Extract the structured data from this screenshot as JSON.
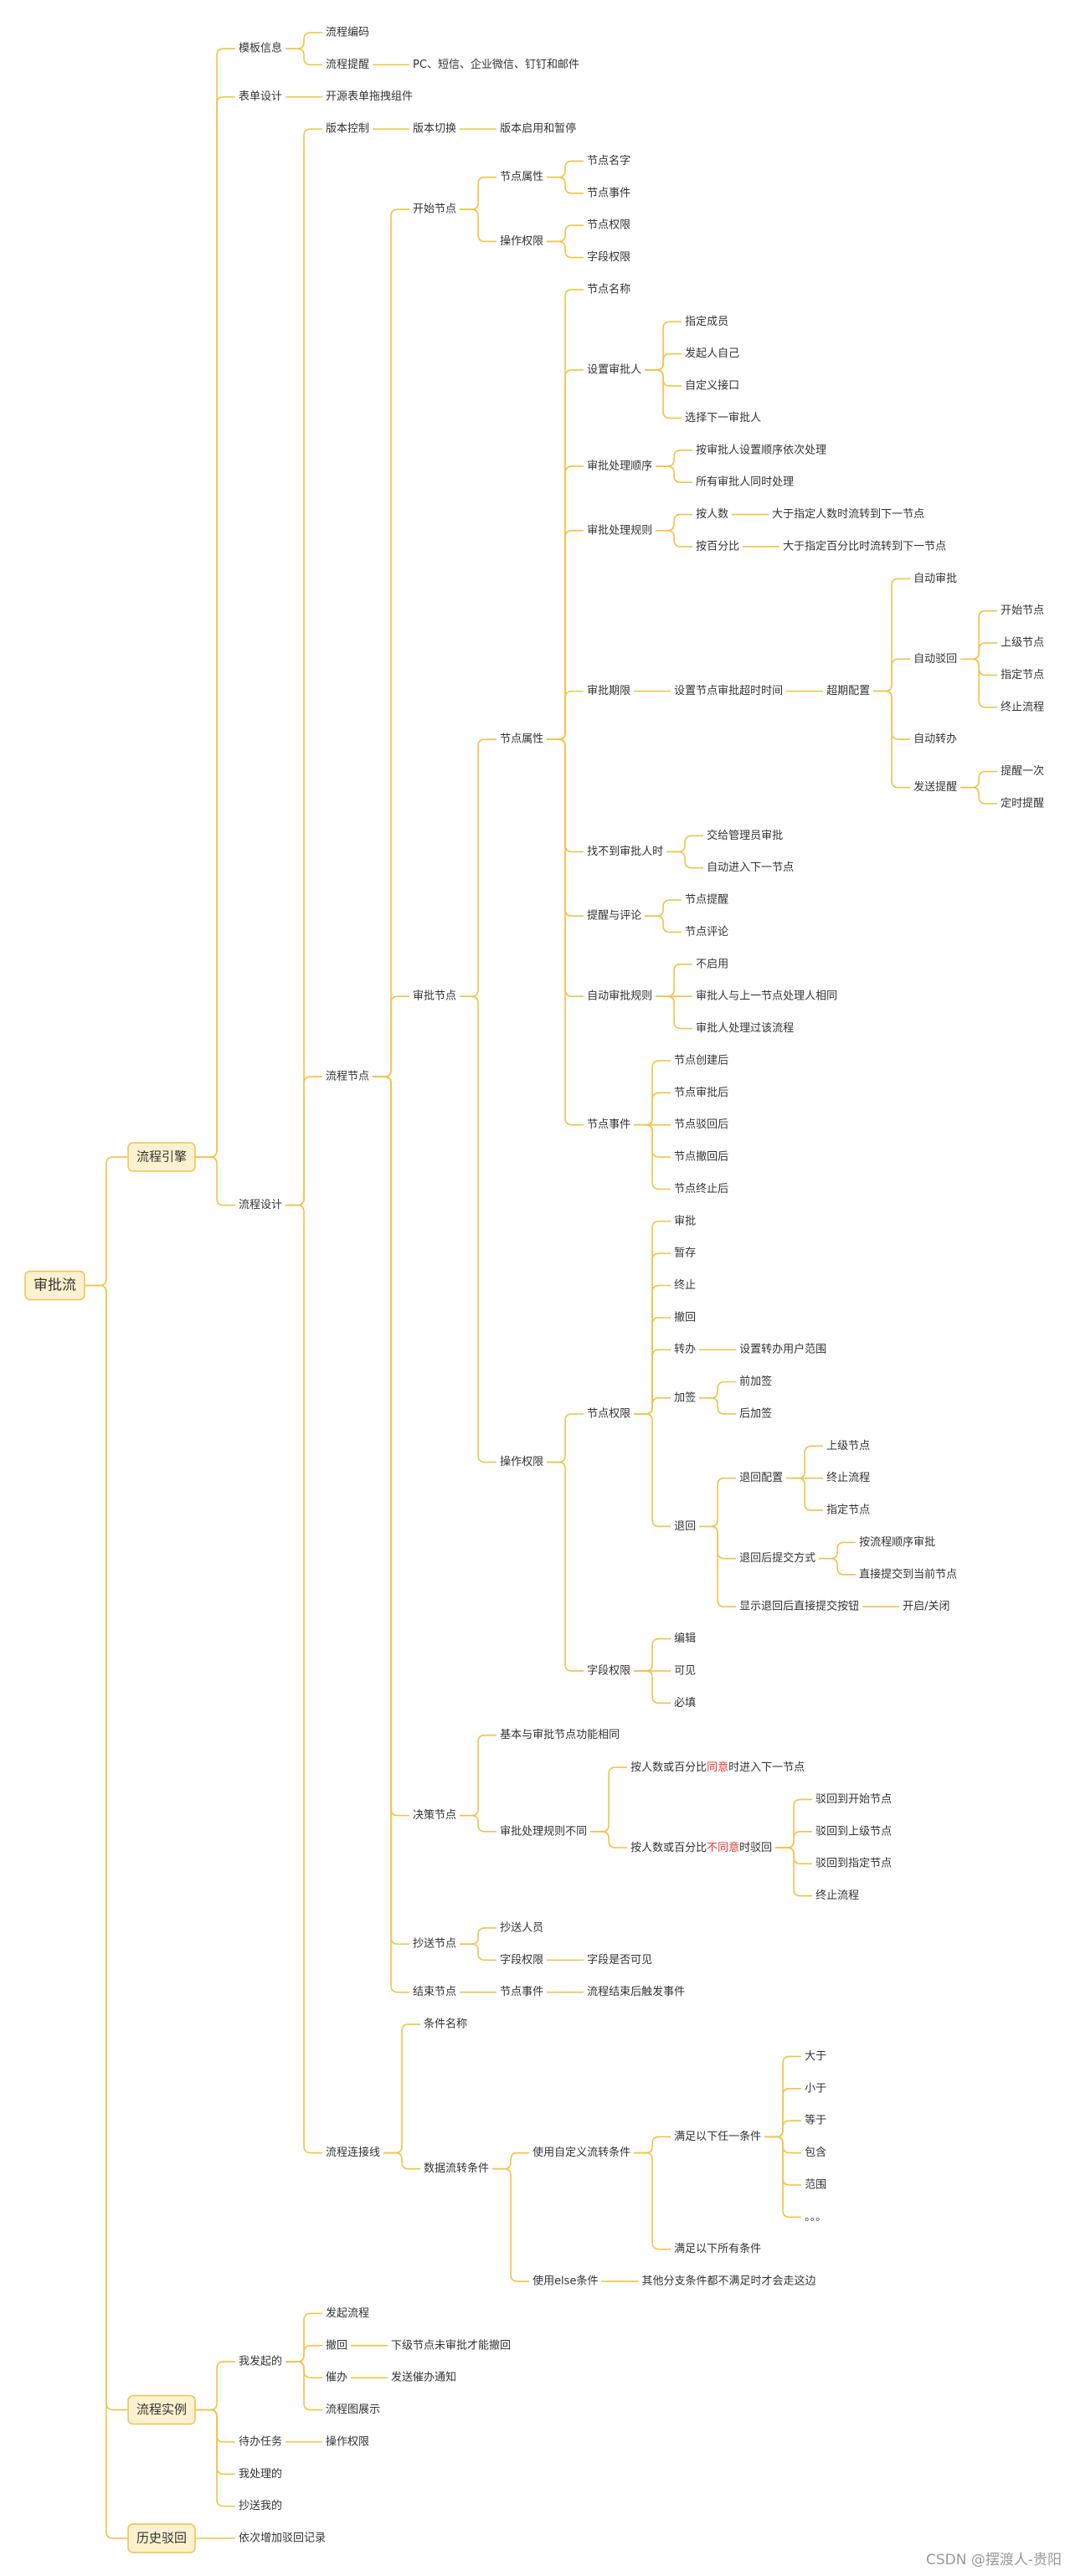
{
  "root": {
    "label": "审批流",
    "children": [
      {
        "label": "流程引擎",
        "children": [
          {
            "label": "模板信息",
            "children": [
              {
                "label": "流程编码"
              },
              {
                "label": "流程提醒",
                "children": [
                  {
                    "label": "PC、短信、企业微信、钉钉和邮件"
                  }
                ]
              }
            ]
          },
          {
            "label": "表单设计",
            "children": [
              {
                "label": "开源表单拖拽组件"
              }
            ]
          },
          {
            "label": "流程设计",
            "children": [
              {
                "label": "版本控制",
                "children": [
                  {
                    "label": "版本切换",
                    "children": [
                      {
                        "label": "版本启用和暂停"
                      }
                    ]
                  }
                ]
              },
              {
                "label": "流程节点",
                "children": [
                  {
                    "label": "开始节点",
                    "children": [
                      {
                        "label": "节点属性",
                        "children": [
                          {
                            "label": "节点名字"
                          },
                          {
                            "label": "节点事件"
                          }
                        ]
                      },
                      {
                        "label": "操作权限",
                        "children": [
                          {
                            "label": "节点权限"
                          },
                          {
                            "label": "字段权限"
                          }
                        ]
                      }
                    ]
                  },
                  {
                    "label": "审批节点",
                    "children": [
                      {
                        "label": "节点属性",
                        "children": [
                          {
                            "label": "节点名称"
                          },
                          {
                            "label": "设置审批人",
                            "children": [
                              {
                                "label": "指定成员"
                              },
                              {
                                "label": "发起人自己"
                              },
                              {
                                "label": "自定义接口"
                              },
                              {
                                "label": "选择下一审批人"
                              }
                            ]
                          },
                          {
                            "label": "审批处理顺序",
                            "children": [
                              {
                                "label": "按审批人设置顺序依次处理"
                              },
                              {
                                "label": "所有审批人同时处理"
                              }
                            ]
                          },
                          {
                            "label": "审批处理规则",
                            "children": [
                              {
                                "label": "按人数",
                                "children": [
                                  {
                                    "label": "大于指定人数时流转到下一节点"
                                  }
                                ]
                              },
                              {
                                "label": "按百分比",
                                "children": [
                                  {
                                    "label": "大于指定百分比时流转到下一节点"
                                  }
                                ]
                              }
                            ]
                          },
                          {
                            "label": "审批期限",
                            "children": [
                              {
                                "label": "设置节点审批超时时间",
                                "children": [
                                  {
                                    "label": "超期配置",
                                    "children": [
                                      {
                                        "label": "自动审批"
                                      },
                                      {
                                        "label": "自动驳回",
                                        "children": [
                                          {
                                            "label": "开始节点"
                                          },
                                          {
                                            "label": "上级节点"
                                          },
                                          {
                                            "label": "指定节点"
                                          },
                                          {
                                            "label": "终止流程"
                                          }
                                        ]
                                      },
                                      {
                                        "label": "自动转办"
                                      },
                                      {
                                        "label": "发送提醒",
                                        "children": [
                                          {
                                            "label": "提醒一次"
                                          },
                                          {
                                            "label": "定时提醒"
                                          }
                                        ]
                                      }
                                    ]
                                  }
                                ]
                              }
                            ]
                          },
                          {
                            "label": "找不到审批人时",
                            "children": [
                              {
                                "label": "交给管理员审批"
                              },
                              {
                                "label": "自动进入下一节点"
                              }
                            ]
                          },
                          {
                            "label": "提醒与评论",
                            "children": [
                              {
                                "label": "节点提醒"
                              },
                              {
                                "label": "节点评论"
                              }
                            ]
                          },
                          {
                            "label": "自动审批规则",
                            "children": [
                              {
                                "label": "不启用"
                              },
                              {
                                "label": "审批人与上一节点处理人相同"
                              },
                              {
                                "label": "审批人处理过该流程"
                              }
                            ]
                          },
                          {
                            "label": "节点事件",
                            "children": [
                              {
                                "label": "节点创建后"
                              },
                              {
                                "label": "节点审批后"
                              },
                              {
                                "label": "节点驳回后"
                              },
                              {
                                "label": "节点撤回后"
                              },
                              {
                                "label": "节点终止后"
                              }
                            ]
                          }
                        ]
                      },
                      {
                        "label": "操作权限",
                        "children": [
                          {
                            "label": "节点权限",
                            "children": [
                              {
                                "label": "审批"
                              },
                              {
                                "label": "暂存"
                              },
                              {
                                "label": "终止"
                              },
                              {
                                "label": "撤回"
                              },
                              {
                                "label": "转办",
                                "children": [
                                  {
                                    "label": "设置转办用户范围"
                                  }
                                ]
                              },
                              {
                                "label": "加签",
                                "children": [
                                  {
                                    "label": "前加签"
                                  },
                                  {
                                    "label": "后加签"
                                  }
                                ]
                              },
                              {
                                "label": "退回",
                                "children": [
                                  {
                                    "label": "退回配置",
                                    "children": [
                                      {
                                        "label": "上级节点"
                                      },
                                      {
                                        "label": "终止流程"
                                      },
                                      {
                                        "label": "指定节点"
                                      }
                                    ]
                                  },
                                  {
                                    "label": "退回后提交方式",
                                    "children": [
                                      {
                                        "label": "按流程顺序审批"
                                      },
                                      {
                                        "label": "直接提交到当前节点"
                                      }
                                    ]
                                  },
                                  {
                                    "label": "显示退回后直接提交按钮",
                                    "children": [
                                      {
                                        "label": "开启/关闭"
                                      }
                                    ]
                                  }
                                ]
                              }
                            ]
                          },
                          {
                            "label": "字段权限",
                            "children": [
                              {
                                "label": "编辑"
                              },
                              {
                                "label": "可见"
                              },
                              {
                                "label": "必填"
                              }
                            ]
                          }
                        ]
                      }
                    ]
                  },
                  {
                    "label": "决策节点",
                    "children": [
                      {
                        "label": "基本与审批节点功能相同"
                      },
                      {
                        "label": "审批处理规则不同",
                        "children": [
                          {
                            "label": "按人数或百分比同意时进入下一节点",
                            "highlight": "同意"
                          },
                          {
                            "label": "按人数或百分比不同意时驳回",
                            "highlight": "不同意",
                            "children": [
                              {
                                "label": "驳回到开始节点"
                              },
                              {
                                "label": "驳回到上级节点"
                              },
                              {
                                "label": "驳回到指定节点"
                              },
                              {
                                "label": "终止流程"
                              }
                            ]
                          }
                        ]
                      }
                    ]
                  },
                  {
                    "label": "抄送节点",
                    "children": [
                      {
                        "label": "抄送人员"
                      },
                      {
                        "label": "字段权限",
                        "children": [
                          {
                            "label": "字段是否可见"
                          }
                        ]
                      }
                    ]
                  },
                  {
                    "label": "结束节点",
                    "children": [
                      {
                        "label": "节点事件",
                        "children": [
                          {
                            "label": "流程结束后触发事件"
                          }
                        ]
                      }
                    ]
                  }
                ]
              },
              {
                "label": "流程连接线",
                "children": [
                  {
                    "label": "条件名称"
                  },
                  {
                    "label": "数据流转条件",
                    "children": [
                      {
                        "label": "使用自定义流转条件",
                        "children": [
                          {
                            "label": "满足以下任一条件",
                            "children": [
                              {
                                "label": "大于"
                              },
                              {
                                "label": "小于"
                              },
                              {
                                "label": "等于"
                              },
                              {
                                "label": "包含"
                              },
                              {
                                "label": "范围"
                              },
                              {
                                "label": "。。。"
                              }
                            ]
                          },
                          {
                            "label": "满足以下所有条件"
                          }
                        ]
                      },
                      {
                        "label": "使用else条件",
                        "children": [
                          {
                            "label": "其他分支条件都不满足时才会走这边"
                          }
                        ]
                      }
                    ]
                  }
                ]
              }
            ]
          }
        ]
      },
      {
        "label": "流程实例",
        "children": [
          {
            "label": "我发起的",
            "children": [
              {
                "label": "发起流程"
              },
              {
                "label": "撤回",
                "children": [
                  {
                    "label": "下级节点未审批才能撤回"
                  }
                ]
              },
              {
                "label": "催办",
                "children": [
                  {
                    "label": "发送催办通知"
                  }
                ]
              },
              {
                "label": "流程图展示"
              }
            ]
          },
          {
            "label": "待办任务",
            "children": [
              {
                "label": "操作权限"
              }
            ]
          },
          {
            "label": "我处理的"
          },
          {
            "label": "抄送我的"
          }
        ]
      },
      {
        "label": "历史驳回",
        "children": [
          {
            "label": "依次增加驳回记录"
          }
        ]
      }
    ]
  },
  "watermark": "CSDN @摆渡人-贵阳"
}
